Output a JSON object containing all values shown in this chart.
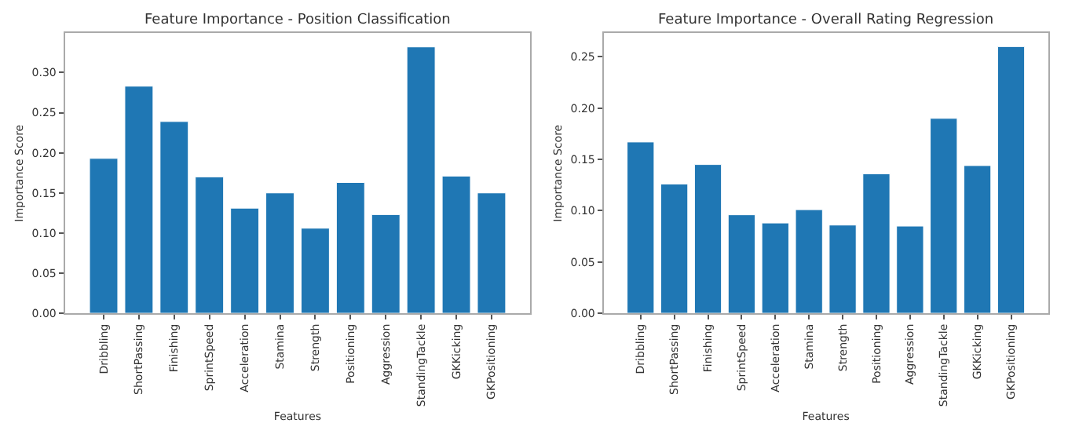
{
  "chart_data": [
    {
      "type": "bar",
      "title": "Feature Importance - Position Classification",
      "xlabel": "Features",
      "ylabel": "Importance Score",
      "categories": [
        "Dribbling",
        "ShortPassing",
        "Finishing",
        "SprintSpeed",
        "Acceleration",
        "Stamina",
        "Strength",
        "Positioning",
        "Aggression",
        "StandingTackle",
        "GKKicking",
        "GKPositioning"
      ],
      "values": [
        0.193,
        0.283,
        0.239,
        0.17,
        0.131,
        0.15,
        0.106,
        0.163,
        0.123,
        0.332,
        0.171,
        0.15
      ],
      "color": "#1f77b4",
      "ylim": [
        0,
        0.349
      ],
      "yticks": [
        {
          "value": 0,
          "label": "0.00"
        },
        {
          "value": 0.05,
          "label": "0.05"
        },
        {
          "value": 0.1,
          "label": "0.10"
        },
        {
          "value": 0.15,
          "label": "0.15"
        },
        {
          "value": 0.2,
          "label": "0.20"
        },
        {
          "value": 0.25,
          "label": "0.25"
        },
        {
          "value": 0.3,
          "label": "0.30"
        }
      ]
    },
    {
      "type": "bar",
      "title": "Feature Importance - Overall Rating Regression",
      "xlabel": "Features",
      "ylabel": "Importance Score",
      "categories": [
        "Dribbling",
        "ShortPassing",
        "Finishing",
        "SprintSpeed",
        "Acceleration",
        "Stamina",
        "Strength",
        "Positioning",
        "Aggression",
        "StandingTackle",
        "GKKicking",
        "GKPositioning"
      ],
      "values": [
        0.167,
        0.126,
        0.145,
        0.096,
        0.088,
        0.101,
        0.086,
        0.136,
        0.085,
        0.19,
        0.144,
        0.26
      ],
      "color": "#1f77b4",
      "ylim": [
        0,
        0.273
      ],
      "yticks": [
        {
          "value": 0,
          "label": "0.00"
        },
        {
          "value": 0.05,
          "label": "0.05"
        },
        {
          "value": 0.1,
          "label": "0.10"
        },
        {
          "value": 0.15,
          "label": "0.15"
        },
        {
          "value": 0.2,
          "label": "0.20"
        },
        {
          "value": 0.25,
          "label": "0.25"
        }
      ]
    }
  ]
}
